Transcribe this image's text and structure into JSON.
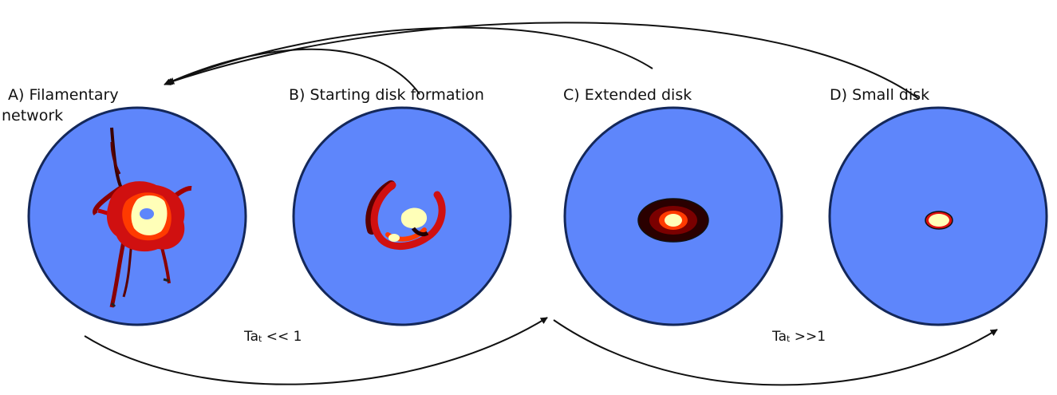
{
  "panels": [
    {
      "id": "A",
      "label_line1": "A)  Filamentary",
      "label_line2": "network"
    },
    {
      "id": "B",
      "label_line1": "B) Starting disk formation"
    },
    {
      "id": "C",
      "label_line1": "C) Extended disk"
    },
    {
      "id": "D",
      "label_line1": "D) Small disk"
    }
  ],
  "conditions": [
    {
      "base": "Ta",
      "sub": "t",
      "rest": " << 1"
    },
    {
      "base": "Ta",
      "sub": "t",
      "rest": " >>1"
    }
  ],
  "colors": {
    "disk_fill": "#5e86fb",
    "disk_stroke": "#14285a",
    "dark_red": "#5a0000",
    "red": "#d01010",
    "orange_red": "#ff3a00",
    "pale_yellow": "#ffffb8",
    "black": "#111111"
  }
}
